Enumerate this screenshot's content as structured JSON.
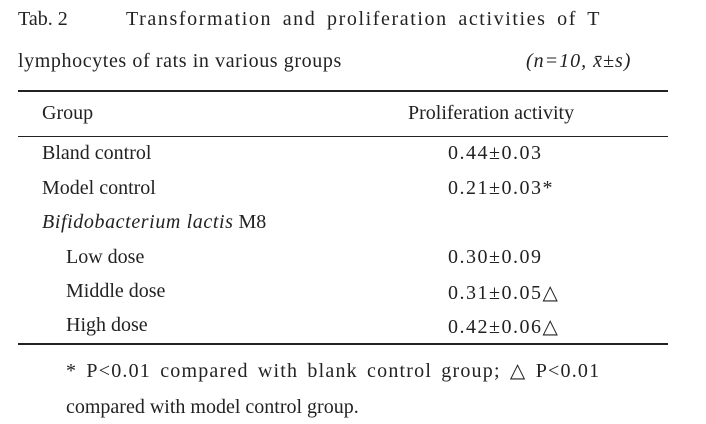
{
  "caption": {
    "label": "Tab. 2",
    "title_lines": [
      "Transformation and proliferation activities of T",
      "lymphocytes of rats in various groups"
    ],
    "stat_note": "(n=10, x̄±s)"
  },
  "table": {
    "columns": [
      "Group",
      "Proliferation activity"
    ],
    "rows": [
      [
        "Bland control",
        "0.44±0.03"
      ],
      [
        "Model control",
        "0.21±0.03*"
      ]
    ],
    "subgroup": {
      "name": "Bifidobacterium lactis",
      "strain": "M8",
      "rows": [
        [
          "Low dose",
          "0.30±0.09"
        ],
        [
          "Middle dose",
          "0.31±0.05△"
        ],
        [
          "High dose",
          "0.42±0.06△"
        ]
      ]
    }
  },
  "footnote": {
    "line1": "* P<0.01 compared with blank control group; △ P<0.01",
    "line2": "compared with model control group."
  }
}
